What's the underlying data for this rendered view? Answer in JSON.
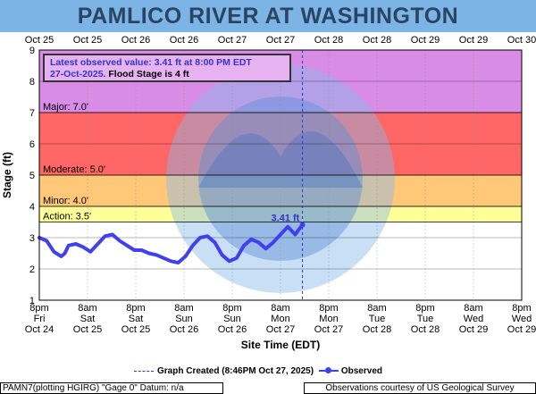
{
  "title": "PAMLICO RIVER AT WASHINGTON",
  "colors": {
    "header": "#7db4e6",
    "record": "#d88ce6",
    "major": "#ff6666",
    "moderate": "#ff6666",
    "minor": "#ffc878",
    "action": "#ffff99",
    "observed": "#4040ee"
  },
  "legend_box": {
    "line1": "Latest observed value: 3.41 ft at 8:00 PM EDT",
    "line2a": "27-Oct-2025.",
    "line2b": "Flood Stage is 4 ft"
  },
  "bottom_legend": {
    "created": "Graph Created (8:46PM Oct 27, 2025)",
    "observed": "Observed"
  },
  "footer": {
    "left": "PAMN7(plotting HGIRG) \"Gage 0\" Datum: n/a",
    "right": "Observations courtesy of US Geological Survey"
  },
  "chart_data": {
    "type": "line",
    "title": "PAMLICO RIVER AT WASHINGTON",
    "xlabel": "Site Time (EDT)",
    "ylabel": "Stage (ft)",
    "ylim": [
      1,
      9
    ],
    "yticks": [
      1,
      2,
      3,
      4,
      5,
      6,
      7,
      8,
      9
    ],
    "grid": true,
    "top_ticks": [
      "Oct 25",
      "Oct 25",
      "Oct 26",
      "Oct 26",
      "Oct 27",
      "Oct 27",
      "Oct 28",
      "Oct 28",
      "Oct 29",
      "Oct 29",
      "Oct 30"
    ],
    "bottom_ticks": [
      {
        "time": "8pm",
        "day": "Fri",
        "date": "Oct 24"
      },
      {
        "time": "8am",
        "day": "Sat",
        "date": "Oct 25"
      },
      {
        "time": "8pm",
        "day": "Sat",
        "date": "Oct 25"
      },
      {
        "time": "8am",
        "day": "Sun",
        "date": "Oct 26"
      },
      {
        "time": "8pm",
        "day": "Sun",
        "date": "Oct 26"
      },
      {
        "time": "8am",
        "day": "Mon",
        "date": "Oct 27"
      },
      {
        "time": "8pm",
        "day": "Mon",
        "date": "Oct 27"
      },
      {
        "time": "8am",
        "day": "Tue",
        "date": "Oct 28"
      },
      {
        "time": "8pm",
        "day": "Tue",
        "date": "Oct 28"
      },
      {
        "time": "8am",
        "day": "Wed",
        "date": "Oct 29"
      },
      {
        "time": "8pm",
        "day": "Wed",
        "date": "Oct 29"
      }
    ],
    "thresholds": [
      {
        "label": "Major: 7.0'",
        "value": 7.0
      },
      {
        "label": "Moderate: 5.0'",
        "value": 5.0
      },
      {
        "label": "Minor: 4.0'",
        "value": 4.0
      },
      {
        "label": "Action: 3.5'",
        "value": 3.5
      }
    ],
    "latest_label": "3.41 ft",
    "series": [
      {
        "name": "Observed",
        "hours": [
          0,
          2,
          4,
          6,
          7,
          8,
          10,
          12,
          14,
          16,
          18,
          20,
          22,
          24,
          26,
          28,
          30,
          32,
          34,
          36,
          38,
          40,
          42,
          44,
          46,
          48,
          50,
          52,
          54,
          56,
          58,
          60,
          62,
          64,
          66,
          68,
          70,
          72
        ],
        "values": [
          3.0,
          2.9,
          2.55,
          2.4,
          2.5,
          2.75,
          2.8,
          2.7,
          2.55,
          2.8,
          3.05,
          3.1,
          2.9,
          2.75,
          2.6,
          2.6,
          2.5,
          2.45,
          2.35,
          2.25,
          2.2,
          2.4,
          2.75,
          3.0,
          3.05,
          2.85,
          2.45,
          2.25,
          2.35,
          2.75,
          2.95,
          2.85,
          2.65,
          2.85,
          3.1,
          3.35,
          3.1,
          3.41
        ]
      }
    ]
  }
}
